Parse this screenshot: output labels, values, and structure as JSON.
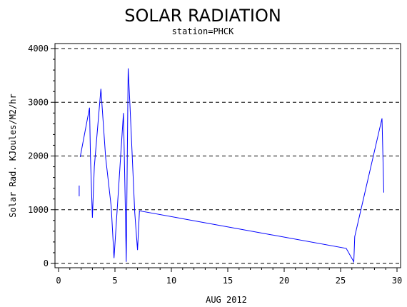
{
  "chart_data": {
    "type": "line",
    "title": "SOLAR RADIATION",
    "subtitle": "station=PHCK",
    "xlabel": "AUG 2012",
    "ylabel": "Solar Rad. KJoules/M2/hr",
    "xlim": [
      0,
      30
    ],
    "ylim": [
      0,
      4000
    ],
    "x_ticks": [
      0,
      5,
      10,
      15,
      20,
      25,
      30
    ],
    "y_ticks": [
      0,
      1000,
      2000,
      3000,
      4000
    ],
    "grid": "horizontal dashed",
    "series": [
      {
        "color": "#0000ff",
        "segments": [
          [
            [
              1.83,
              1250
            ],
            [
              1.83,
              1450
            ]
          ],
          [
            [
              1.92,
              1980
            ],
            [
              2.75,
              2900
            ],
            [
              2.83,
              1980
            ],
            [
              3.0,
              850
            ],
            [
              3.17,
              1800
            ],
            [
              3.75,
              3250
            ],
            [
              4.17,
              1980
            ],
            [
              4.67,
              1050
            ],
            [
              4.92,
              100
            ],
            [
              5.75,
              2800
            ],
            [
              5.83,
              2000
            ],
            [
              5.92,
              1050
            ],
            [
              6.0,
              30
            ],
            [
              6.17,
              3630
            ],
            [
              6.33,
              2950
            ],
            [
              6.75,
              950
            ],
            [
              7.0,
              250
            ],
            [
              7.17,
              980
            ],
            [
              25.5,
              280
            ],
            [
              26.17,
              30
            ],
            [
              26.25,
              500
            ],
            [
              28.67,
              2700
            ],
            [
              28.83,
              1320
            ]
          ]
        ]
      }
    ],
    "colors": {
      "series": "#0000ff",
      "axes": "#000000",
      "grid": "#000000",
      "background": "#ffffff"
    }
  }
}
